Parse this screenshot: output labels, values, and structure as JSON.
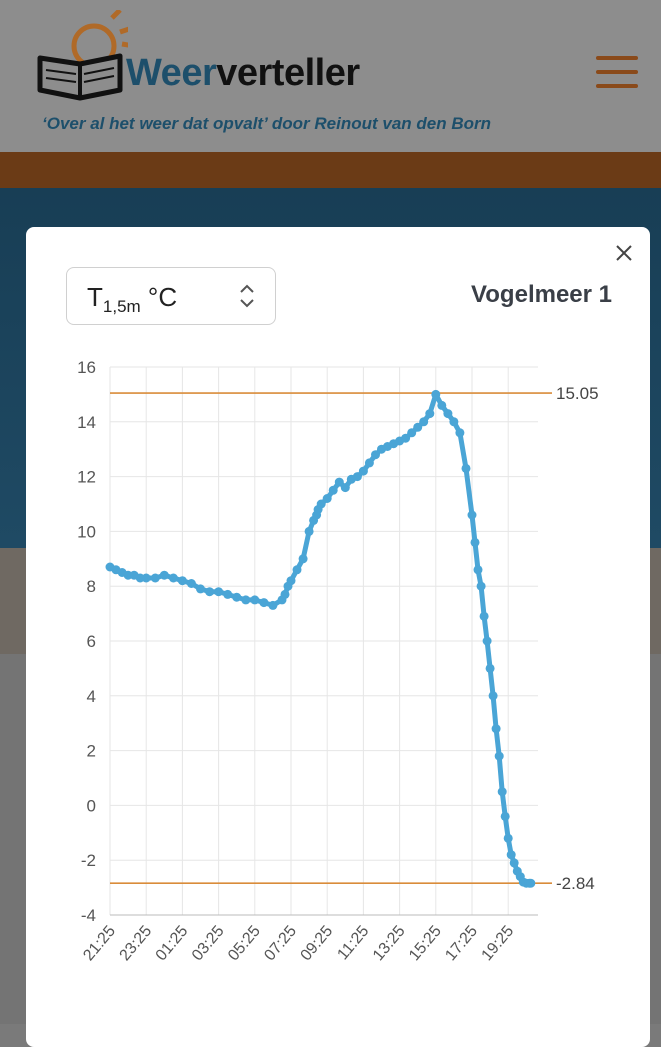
{
  "brand": {
    "name_accent": "Weer",
    "name_rest": "verteller",
    "tagline": "‘Over al het weer dat opvalt’ door Reinout van den Born"
  },
  "icons": {
    "logo": "sun-book-icon",
    "menu": "hamburger-menu-icon",
    "close": "close-icon",
    "select": "chevron-up-down-icon"
  },
  "modal": {
    "select": {
      "base": "T",
      "sub": "1,5m",
      "unit": "°C"
    },
    "station": "Vogelmeer 1"
  },
  "colors": {
    "series": "#4aa5d6",
    "reference": "#d98c3a",
    "grid": "#e6e6e6"
  },
  "chart_data": {
    "type": "line",
    "title": "",
    "xlabel": "",
    "ylabel": "",
    "ylim": [
      -4,
      16
    ],
    "yticks": [
      16,
      14,
      12,
      10,
      8,
      6,
      4,
      2,
      0,
      -2,
      -4
    ],
    "xticks": [
      "21:25",
      "23:25",
      "01:25",
      "03:25",
      "05:25",
      "07:25",
      "09:25",
      "11:25",
      "13:25",
      "15:25",
      "17:25",
      "19:25"
    ],
    "x_unit_minutes_from": "21:25",
    "grid": true,
    "reference_lines": [
      {
        "value": 15.05,
        "label": "15.05"
      },
      {
        "value": -2.84,
        "label": "-2.84"
      }
    ],
    "series": [
      {
        "x": [
          0,
          20,
          40,
          60,
          80,
          100,
          120,
          150,
          180,
          210,
          240,
          270,
          300,
          330,
          360,
          390,
          420,
          450,
          480,
          510,
          540,
          570,
          580,
          590,
          600,
          620,
          640,
          660,
          675,
          685,
          690,
          700,
          720,
          740,
          760,
          780,
          800,
          820,
          840,
          860,
          880,
          900,
          920,
          940,
          960,
          980,
          1000,
          1020,
          1040,
          1060,
          1080,
          1100,
          1120,
          1140,
          1160,
          1180,
          1200,
          1210,
          1220,
          1230,
          1240,
          1250,
          1260,
          1270,
          1280,
          1290,
          1300,
          1310,
          1320,
          1330,
          1340,
          1350,
          1360,
          1370,
          1380,
          1390,
          1395
        ],
        "y": [
          8.7,
          8.6,
          8.5,
          8.4,
          8.4,
          8.3,
          8.3,
          8.3,
          8.4,
          8.3,
          8.2,
          8.1,
          7.9,
          7.8,
          7.8,
          7.7,
          7.6,
          7.5,
          7.5,
          7.4,
          7.3,
          7.5,
          7.7,
          8.0,
          8.2,
          8.6,
          9.0,
          10.0,
          10.4,
          10.6,
          10.8,
          11.0,
          11.2,
          11.5,
          11.8,
          11.6,
          11.9,
          12.0,
          12.2,
          12.5,
          12.8,
          13.0,
          13.1,
          13.2,
          13.3,
          13.4,
          13.6,
          13.8,
          14.0,
          14.3,
          15.0,
          14.6,
          14.3,
          14.0,
          13.6,
          12.3,
          10.6,
          9.6,
          8.6,
          8.0,
          6.9,
          6.0,
          5.0,
          4.0,
          2.8,
          1.8,
          0.5,
          -0.4,
          -1.2,
          -1.8,
          -2.1,
          -2.4,
          -2.6,
          -2.8,
          -2.84,
          -2.84,
          -2.84
        ]
      }
    ]
  }
}
